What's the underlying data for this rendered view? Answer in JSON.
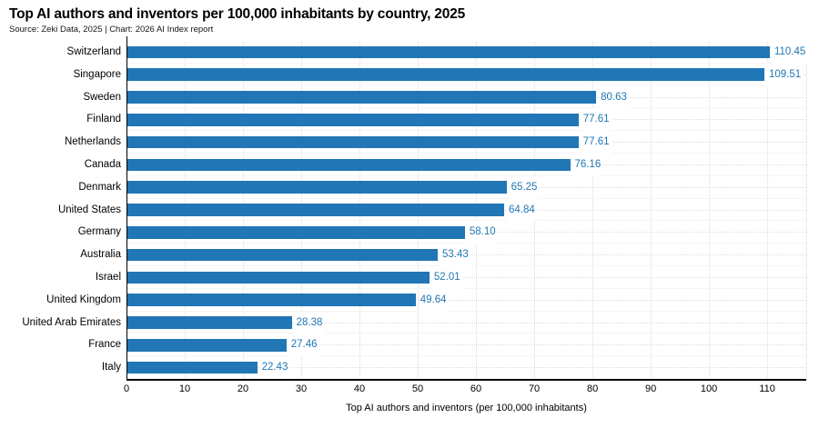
{
  "header": {
    "title": "Top AI authors and inventors per 100,000 inhabitants by country, 2025",
    "subtitle": "Source: Zeki Data, 2025 | Chart: 2026 AI Index report"
  },
  "chart_data": {
    "type": "bar",
    "orientation": "horizontal",
    "title": "Top AI authors and inventors per 100,000 inhabitants by country, 2025",
    "subtitle": "Source: Zeki Data, 2025 | Chart: 2026 AI Index report",
    "categories": [
      "Switzerland",
      "Singapore",
      "Sweden",
      "Finland",
      "Netherlands",
      "Canada",
      "Denmark",
      "United States",
      "Germany",
      "Australia",
      "Israel",
      "United Kingdom",
      "United Arab Emirates",
      "France",
      "Italy"
    ],
    "values": [
      110.45,
      109.51,
      80.63,
      77.61,
      77.61,
      76.16,
      65.25,
      64.84,
      58.1,
      53.43,
      52.01,
      49.64,
      28.38,
      27.46,
      22.43
    ],
    "value_labels": [
      "110.45",
      "109.51",
      "80.63",
      "77.61",
      "77.61",
      "76.16",
      "65.25",
      "64.84",
      "58.10",
      "53.43",
      "52.01",
      "49.64",
      "28.38",
      "27.46",
      "22.43"
    ],
    "xlabel": "Top AI authors and inventors (per 100,000 inhabitants)",
    "ylabel": "",
    "xlim": [
      0,
      116.7
    ],
    "xticks": [
      0,
      10,
      20,
      30,
      40,
      50,
      60,
      70,
      80,
      90,
      100,
      110
    ],
    "grid": true,
    "legend_position": "none",
    "bar_color": "#2176b5",
    "value_label_color": "#1f77b4"
  }
}
